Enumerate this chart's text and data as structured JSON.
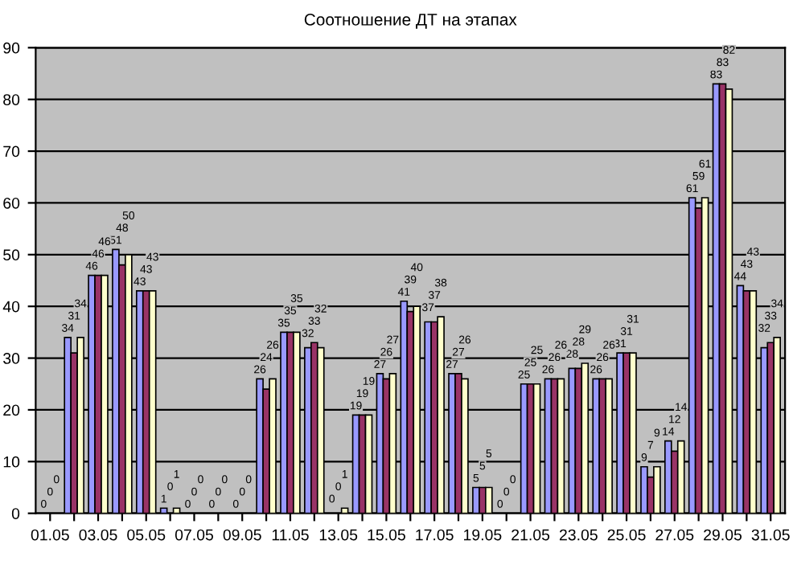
{
  "chart_data": {
    "type": "bar",
    "title": "Соотношение ДТ на этапах",
    "categories": [
      "01.05",
      null,
      "03.05",
      null,
      "05.05",
      null,
      "07.05",
      null,
      "09.05",
      null,
      "11.05",
      null,
      "13.05",
      null,
      "15.05",
      null,
      "17.05",
      null,
      "19.05",
      null,
      "21.05",
      null,
      "23.05",
      null,
      "25.05",
      null,
      "27.05",
      null,
      "29.05",
      null,
      "31.05"
    ],
    "series": [
      {
        "color": "#9999ff",
        "values": [
          0,
          34,
          46,
          51,
          43,
          1,
          0,
          0,
          0,
          26,
          35,
          32,
          0,
          19,
          27,
          41,
          37,
          27,
          5,
          0,
          25,
          26,
          28,
          26,
          31,
          9,
          14,
          61,
          83,
          44,
          32
        ]
      },
      {
        "color": "#993366",
        "values": [
          0,
          31,
          46,
          48,
          43,
          0,
          0,
          0,
          0,
          24,
          35,
          33,
          0,
          19,
          26,
          39,
          37,
          27,
          5,
          0,
          25,
          26,
          28,
          26,
          31,
          7,
          12,
          59,
          83,
          43,
          33
        ]
      },
      {
        "color": "#ffffcc",
        "values": [
          0,
          34,
          46,
          50,
          43,
          1,
          0,
          0,
          0,
          26,
          35,
          32,
          1,
          19,
          27,
          40,
          38,
          26,
          5,
          0,
          25,
          26,
          29,
          26,
          31,
          9,
          14,
          61,
          82,
          43,
          34
        ]
      }
    ],
    "ylim": [
      0,
      90
    ],
    "yticks": [
      0,
      10,
      20,
      30,
      40,
      50,
      60,
      70,
      80,
      90
    ],
    "grid": "y",
    "data_labels": true
  }
}
